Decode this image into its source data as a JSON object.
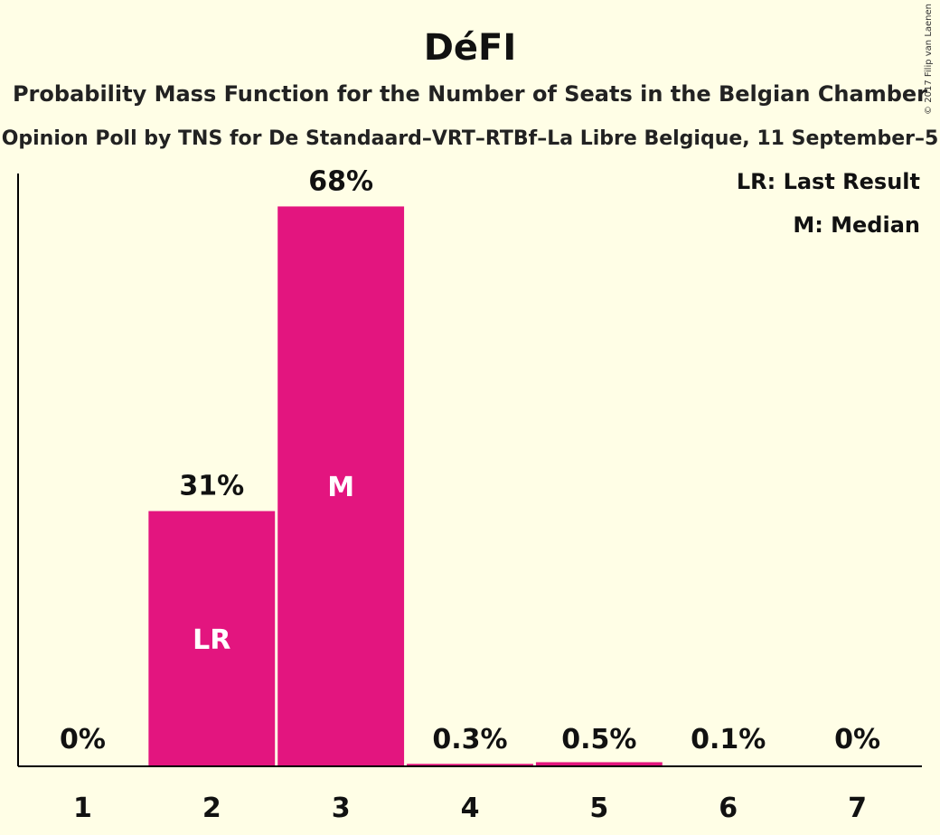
{
  "chart_data": {
    "type": "bar",
    "title": "DéFI",
    "subtitle": "Probability Mass Function for the Number of Seats in the Belgian Chamber",
    "subsubtitle": "Opinion Poll by TNS for De Standaard–VRT–RTBf–La Libre Belgique, 11 September–5",
    "categories": [
      "1",
      "2",
      "3",
      "4",
      "5",
      "6",
      "7"
    ],
    "values": [
      0,
      31,
      68,
      0.3,
      0.5,
      0.1,
      0
    ],
    "value_labels": [
      "0%",
      "31%",
      "68%",
      "0.3%",
      "0.5%",
      "0.1%",
      "0%"
    ],
    "bar_markers": [
      "",
      "LR",
      "M",
      "",
      "",
      "",
      ""
    ],
    "ylim": [
      0,
      72
    ],
    "xlabel": "",
    "ylabel": "",
    "grid": false,
    "bar_color": "#E3157F",
    "legend": {
      "placement": "top-right",
      "entries": [
        "LR: Last Result",
        "M: Median"
      ]
    },
    "copyright": "© 2017 Filip van Laenen"
  }
}
